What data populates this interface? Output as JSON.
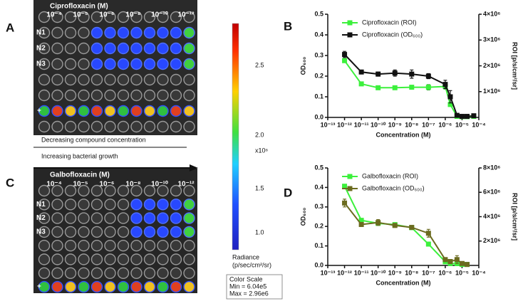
{
  "panels": [
    "A",
    "B",
    "C",
    "D"
  ],
  "plates": [
    {
      "title": "Ciprofloxacin  (M)",
      "columns": [
        "10⁻⁴",
        "10⁻⁵",
        "10⁻⁶",
        "10⁻⁸",
        "10⁻¹⁰",
        "10⁻¹²"
      ],
      "rows": [
        "N1",
        "N2",
        "N3"
      ],
      "control": "+"
    },
    {
      "title": "Galbofloxacin  (M)",
      "columns": [
        "10⁻⁴",
        "10⁻⁵",
        "10⁻⁶",
        "10⁻⁸",
        "10⁻¹⁰",
        "10⁻¹²"
      ],
      "rows": [
        "N1",
        "N2",
        "N3"
      ],
      "control": "+"
    }
  ],
  "arrows": [
    "Decreasing compound concentration",
    "Increasing bacterial growth"
  ],
  "color_scale": {
    "ticks": [
      "2.5",
      "2.0",
      "1.5",
      "1.0"
    ],
    "multiplier": "x10⁶",
    "label": "Radiance",
    "unit": "(p/sec/cm²/sr)",
    "box": [
      "Color Scale",
      "Min = 6.04e5",
      "Max = 2.96e6"
    ]
  },
  "chart_data": [
    {
      "type": "line",
      "x_label": "Concentration (M)",
      "y_label": "OD₆₀₀",
      "y2_label": "ROI [p/s/cm²/sr]",
      "xscale": "log",
      "legend": "upper left",
      "xlim": [
        1e-13,
        0.0001
      ],
      "xticks": [
        {
          "value": 1e-13,
          "label": "10⁻¹³"
        },
        {
          "value": 1e-12,
          "label": "10⁻¹²"
        },
        {
          "value": 1e-11,
          "label": "10⁻¹¹"
        },
        {
          "value": 1e-10,
          "label": "10⁻¹⁰"
        },
        {
          "value": 1e-09,
          "label": "10⁻⁹"
        },
        {
          "value": 1e-08,
          "label": "10⁻⁸"
        },
        {
          "value": 1e-07,
          "label": "10⁻⁷"
        },
        {
          "value": 1e-06,
          "label": "10⁻⁶"
        },
        {
          "value": 1e-05,
          "label": "10⁻⁵"
        },
        {
          "value": 0.0001,
          "label": "10⁻⁴"
        }
      ],
      "ylim": [
        0,
        0.5
      ],
      "yticks": [
        {
          "value": 0,
          "label": "0.0"
        },
        0.1,
        0.2,
        0.3,
        0.4,
        0.5
      ],
      "y2lim": [
        0,
        4000000
      ],
      "y2ticks": [
        {
          "value": 1000000,
          "label": "1×10⁶"
        },
        {
          "value": 2000000,
          "label": "2×10⁶"
        },
        {
          "value": 3000000,
          "label": "3×10⁶"
        },
        {
          "value": 4000000,
          "label": "4×10⁶"
        }
      ],
      "x": [
        1e-12,
        1e-11,
        1e-10,
        1e-09,
        1e-08,
        1e-07,
        1e-06,
        2e-06,
        5e-06,
        1e-05,
        2e-05,
        5e-05
      ],
      "series": [
        {
          "name": "Ciprofloxacin (ROI)",
          "color": "#3cf03c",
          "axis": "y2",
          "values": [
            2200000,
            1300000,
            1150000,
            1150000,
            1170000,
            1170000,
            1200000,
            500000,
            40000,
            30000,
            30000,
            40000
          ],
          "errors": [
            50000,
            30000,
            20000,
            20000,
            20000,
            100000,
            100000,
            50000,
            10000,
            10000,
            10000,
            10000
          ]
        },
        {
          "name": "Ciprofloxacin (OD₆₀₀)",
          "color": "#111111",
          "values": [
            0.305,
            0.22,
            0.21,
            0.215,
            0.21,
            0.2,
            0.16,
            0.1,
            0.01,
            0.005,
            0.005,
            0.008
          ],
          "errors": [
            0.015,
            0.005,
            0.01,
            0.015,
            0.02,
            0.012,
            0.02,
            0.03,
            0.005,
            0.003,
            0.003,
            0.003
          ]
        }
      ]
    },
    {
      "type": "line",
      "x_label": "Concentration (M)",
      "y_label": "OD₆₀₀",
      "y2_label": "ROI [p/s/cm²/sr]",
      "xscale": "log",
      "legend": "upper left",
      "xlim": [
        1e-13,
        0.0001
      ],
      "xticks": [
        {
          "value": 1e-13,
          "label": "10⁻¹³"
        },
        {
          "value": 1e-12,
          "label": "10⁻¹²"
        },
        {
          "value": 1e-11,
          "label": "10⁻¹¹"
        },
        {
          "value": 1e-10,
          "label": "10⁻¹⁰"
        },
        {
          "value": 1e-09,
          "label": "10⁻⁹"
        },
        {
          "value": 1e-08,
          "label": "10⁻⁸"
        },
        {
          "value": 1e-07,
          "label": "10⁻⁷"
        },
        {
          "value": 1e-06,
          "label": "10⁻⁶"
        },
        {
          "value": 1e-05,
          "label": "10⁻⁵"
        },
        {
          "value": 0.0001,
          "label": "10⁻⁴"
        }
      ],
      "ylim": [
        0,
        0.5
      ],
      "yticks": [
        {
          "value": 0,
          "label": "0.0"
        },
        0.1,
        0.2,
        0.3,
        0.4,
        0.5
      ],
      "y2lim": [
        0,
        8000000
      ],
      "y2ticks": [
        {
          "value": 2000000,
          "label": "2×10⁶"
        },
        {
          "value": 4000000,
          "label": "4×10⁶"
        },
        {
          "value": 6000000,
          "label": "6×10⁶"
        },
        {
          "value": 8000000,
          "label": "8×10⁶"
        }
      ],
      "x": [
        1e-12,
        1e-11,
        1e-10,
        1e-09,
        1e-08,
        1e-07,
        1e-06,
        2e-06,
        5e-06,
        1e-05,
        2e-05
      ],
      "series": [
        {
          "name": "Galbofloxacin (ROI)",
          "color": "#3cf03c",
          "axis": "y2",
          "values": [
            6500000,
            3700000,
            3450000,
            3350000,
            3100000,
            1750000,
            300000,
            150000,
            150000,
            80000,
            80000
          ],
          "errors": [
            100000,
            150000,
            100000,
            80000,
            50000,
            80000,
            80000,
            60000,
            60000,
            30000,
            30000
          ]
        },
        {
          "name": "Galbofloxacin (OD₆₀₀)",
          "color": "#6b6b1f",
          "values": [
            0.32,
            0.21,
            0.22,
            0.205,
            0.195,
            0.165,
            0.03,
            0.02,
            0.03,
            0.01,
            0.005
          ],
          "errors": [
            0.02,
            0.01,
            0.015,
            0.01,
            0.005,
            0.02,
            0.01,
            0.01,
            0.02,
            0.005,
            0.005
          ]
        }
      ]
    }
  ]
}
